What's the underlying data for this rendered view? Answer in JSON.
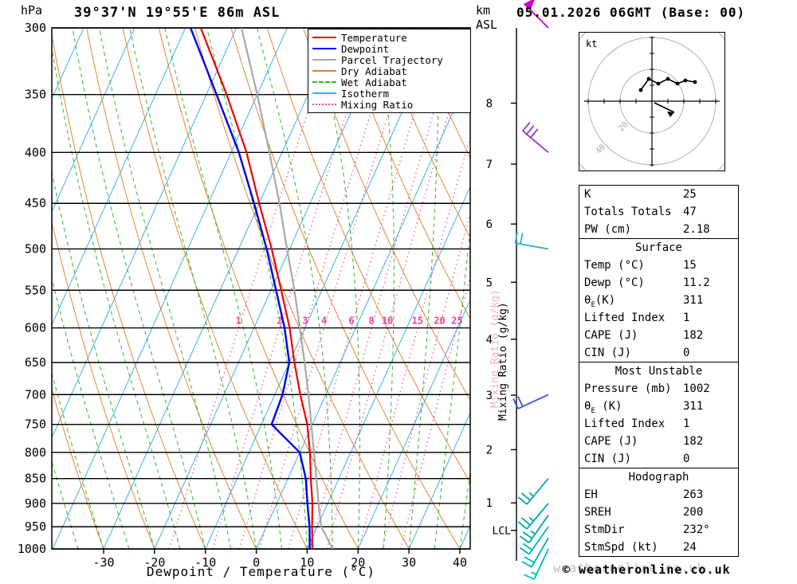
{
  "header": {
    "pressure_unit": "hPa",
    "station_title": "39°37'N 19°55'E 86m ASL",
    "km_label": "km",
    "asl_label": "ASL",
    "datetime": "05.01.2026 06GMT (Base: 00)"
  },
  "axes": {
    "x_label": "Dewpoint / Temperature (°C)",
    "mixing_ratio_axis_label": "Mixing Ratio (g/kg)",
    "lcl_label": "LCL"
  },
  "legend": {
    "items": [
      {
        "label": "Temperature",
        "color": "#f00000",
        "style": "solid"
      },
      {
        "label": "Dewpoint",
        "color": "#0000f0",
        "style": "solid"
      },
      {
        "label": "Parcel Trajectory",
        "color": "#a8a8a8",
        "style": "solid"
      },
      {
        "label": "Dry Adiabat",
        "color": "#e5862b",
        "style": "solid"
      },
      {
        "label": "Wet Adiabat",
        "color": "#2db82d",
        "style": "dashed"
      },
      {
        "label": "Isotherm",
        "color": "#3ab0e8",
        "style": "solid"
      },
      {
        "label": "Mixing Ratio",
        "color": "#f0429a",
        "style": "dotted"
      }
    ]
  },
  "chart_data": {
    "type": "skewt-logp",
    "title": "39°37'N 19°55'E 86m ASL",
    "valid": "05.01.2026 06GMT (Base: 00)",
    "x_axis": {
      "label": "Dewpoint / Temperature (°C)",
      "ticks_c": [
        -30,
        -20,
        -10,
        0,
        10,
        20,
        30,
        40
      ],
      "range_c": [
        -30,
        40
      ]
    },
    "pressure_axis": {
      "unit": "hPa",
      "scale": "log",
      "ticks_hpa": [
        300,
        350,
        400,
        450,
        500,
        550,
        600,
        650,
        700,
        750,
        800,
        850,
        900,
        950,
        1000
      ],
      "range_hpa": [
        300,
        1000
      ]
    },
    "km_axis": {
      "label": "km ASL",
      "ticks": [
        {
          "km": 8,
          "hpa": 357
        },
        {
          "km": 7,
          "hpa": 411
        },
        {
          "km": 6,
          "hpa": 472
        },
        {
          "km": 5,
          "hpa": 540
        },
        {
          "km": 4,
          "hpa": 616
        },
        {
          "km": 3,
          "hpa": 701
        },
        {
          "km": 2,
          "hpa": 795
        },
        {
          "km": 1,
          "hpa": 899
        }
      ],
      "lcl_hpa": 958
    },
    "grid": {
      "isotherm_step_c": 10,
      "dry_adiabat_step_c": 10,
      "wet_adiabat_step_c": 5,
      "skew": 0.45
    },
    "mixing_ratio_lines_gkg": [
      1,
      2,
      3,
      4,
      6,
      8,
      10,
      15,
      20,
      25
    ],
    "sounding": {
      "pressure_hpa": [
        1000,
        950,
        900,
        850,
        800,
        750,
        700,
        650,
        600,
        550,
        500,
        450,
        400,
        350,
        300
      ],
      "temperature_c": [
        11,
        9,
        7,
        4.5,
        2,
        -1,
        -5,
        -9,
        -13,
        -18,
        -23.5,
        -30,
        -37,
        -46,
        -57
      ],
      "dewpoint_c": [
        10.5,
        8.5,
        6,
        3.5,
        0,
        -8,
        -8.5,
        -10,
        -14,
        -19,
        -24.5,
        -31,
        -38.5,
        -48,
        -59
      ],
      "parcel_c": [
        15,
        10.8,
        8.2,
        5.6,
        2.8,
        -0.2,
        -3.4,
        -7,
        -11,
        -15.4,
        -20.5,
        -26,
        -32.5,
        -40,
        -49
      ]
    },
    "wind_barbs": [
      {
        "pressure_hpa": 300,
        "dir_deg": 315,
        "speed_kt": 50,
        "color": "#cc00cc"
      },
      {
        "pressure_hpa": 400,
        "dir_deg": 310,
        "speed_kt": 30,
        "color": "#9933cc"
      },
      {
        "pressure_hpa": 500,
        "dir_deg": 280,
        "speed_kt": 20,
        "color": "#33aadd"
      },
      {
        "pressure_hpa": 700,
        "dir_deg": 245,
        "speed_kt": 20,
        "color": "#3355dd"
      },
      {
        "pressure_hpa": 850,
        "dir_deg": 220,
        "speed_kt": 25,
        "color": "#00a8a8"
      },
      {
        "pressure_hpa": 900,
        "dir_deg": 220,
        "speed_kt": 25,
        "color": "#00a8a8"
      },
      {
        "pressure_hpa": 925,
        "dir_deg": 215,
        "speed_kt": 25,
        "color": "#00a8a8"
      },
      {
        "pressure_hpa": 950,
        "dir_deg": 215,
        "speed_kt": 20,
        "color": "#00b4b4"
      },
      {
        "pressure_hpa": 975,
        "dir_deg": 210,
        "speed_kt": 20,
        "color": "#00b4b4"
      },
      {
        "pressure_hpa": 1000,
        "dir_deg": 205,
        "speed_kt": 15,
        "color": "#00c0c0"
      }
    ]
  },
  "hodograph": {
    "unit_label": "kt",
    "rings_kt": [
      20,
      40,
      60
    ],
    "ring_labels": [
      "20",
      "40"
    ],
    "trace_uv_kt": [
      [
        -7,
        7
      ],
      [
        -2,
        14
      ],
      [
        4,
        11
      ],
      [
        10,
        14
      ],
      [
        16,
        11
      ],
      [
        21,
        13
      ],
      [
        27,
        12
      ]
    ],
    "storm_motion_uv_kt": [
      14,
      -7
    ]
  },
  "table": {
    "indices": {
      "rows": [
        [
          "K",
          "25"
        ],
        [
          "Totals Totals",
          "47"
        ],
        [
          "PW (cm)",
          "2.18"
        ]
      ]
    },
    "surface": {
      "title": "Surface",
      "rows": [
        [
          "Temp (°C)",
          "15"
        ],
        [
          "Dewp (°C)",
          "11.2"
        ],
        [
          "θE(K)",
          "311"
        ],
        [
          "Lifted Index",
          "1"
        ],
        [
          "CAPE (J)",
          "182"
        ],
        [
          "CIN (J)",
          "0"
        ]
      ]
    },
    "most_unstable": {
      "title": "Most Unstable",
      "rows": [
        [
          "Pressure (mb)",
          "1002"
        ],
        [
          "θE (K)",
          "311"
        ],
        [
          "Lifted Index",
          "1"
        ],
        [
          "CAPE (J)",
          "182"
        ],
        [
          "CIN (J)",
          "0"
        ]
      ]
    },
    "hodograph_section": {
      "title": "Hodograph",
      "rows": [
        [
          "EH",
          "263"
        ],
        [
          "SREH",
          "200"
        ],
        [
          "StmDir",
          "232°"
        ],
        [
          "StmSpd (kt)",
          "24"
        ]
      ]
    }
  },
  "footer": {
    "copyright": "© weatheronline.co.uk",
    "watermark": "weatheronline.co.uk"
  }
}
